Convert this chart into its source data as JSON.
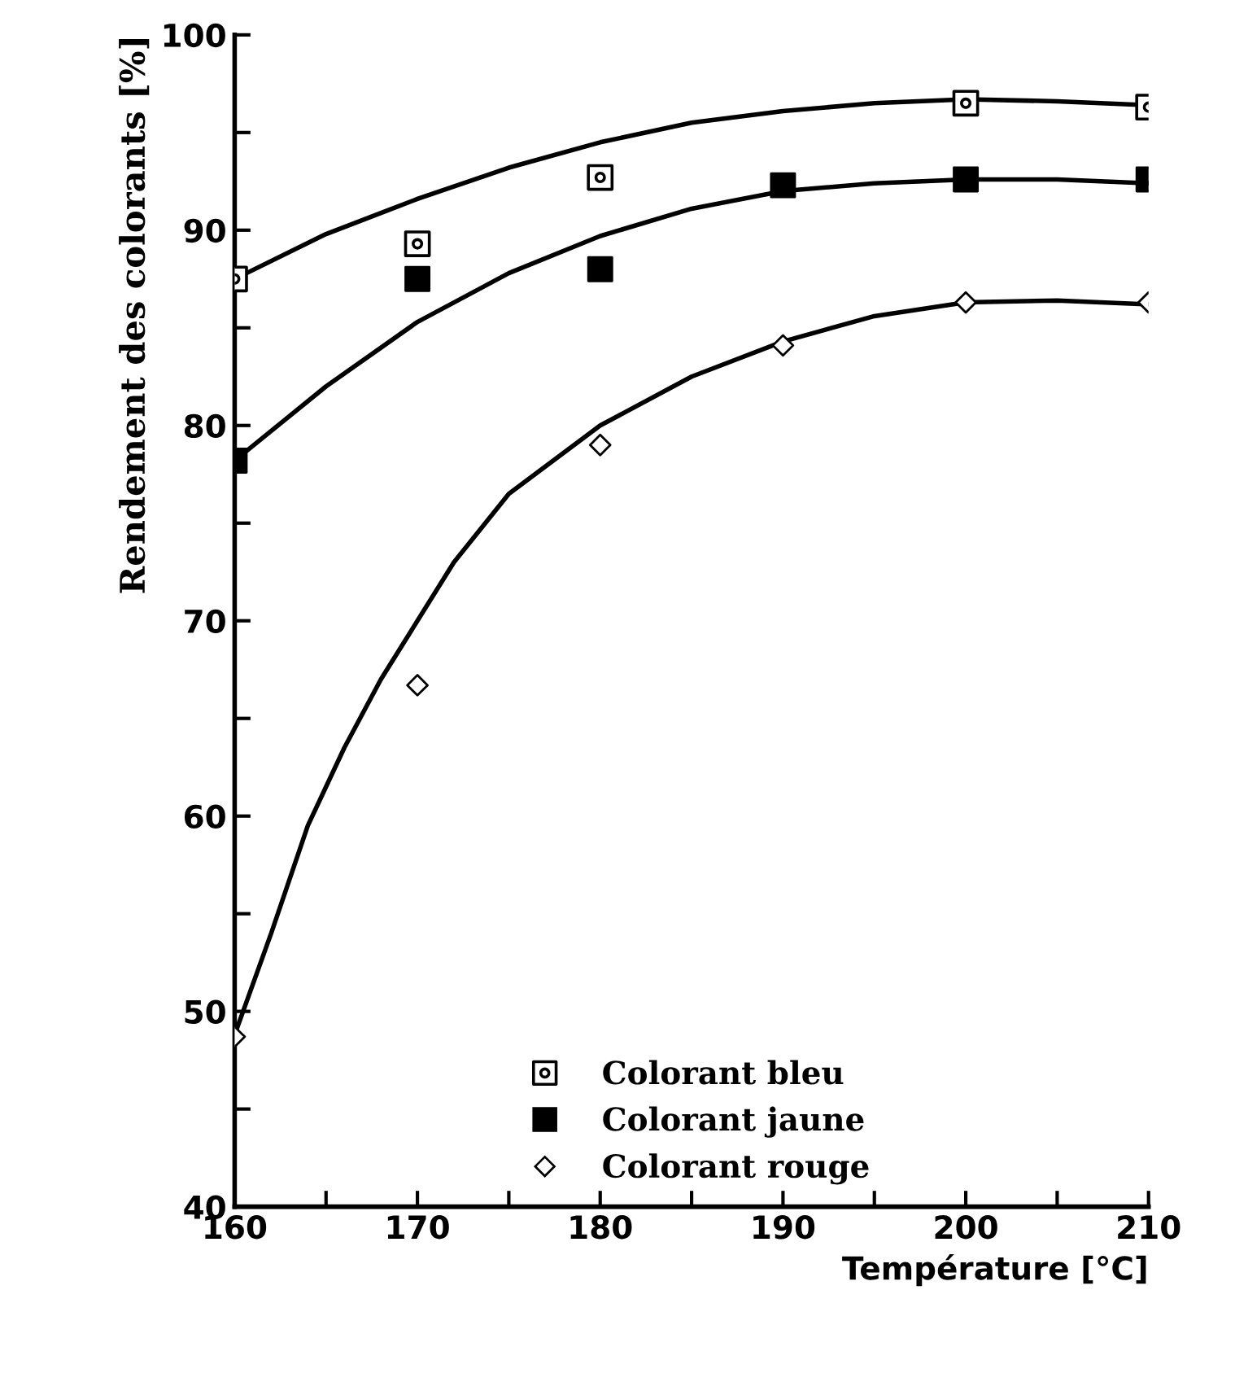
{
  "chart_data": {
    "type": "scatter",
    "xlabel": "Température [°C]",
    "ylabel": "Rendement des colorants [%]",
    "xlim": [
      160,
      210
    ],
    "ylim": [
      40,
      100
    ],
    "xticks": [
      160,
      {
        "value": 165,
        "label": null
      },
      170,
      {
        "value": 175,
        "label": null
      },
      180,
      {
        "value": 185,
        "label": null
      },
      190,
      {
        "value": 195,
        "label": null
      },
      200,
      {
        "value": 205,
        "label": null
      },
      210
    ],
    "yticks": [
      40,
      {
        "value": 45,
        "label": null
      },
      50,
      {
        "value": 55,
        "label": null
      },
      60,
      {
        "value": 65,
        "label": null
      },
      70,
      {
        "value": 75,
        "label": null
      },
      80,
      {
        "value": 85,
        "label": null
      },
      90,
      {
        "value": 95,
        "label": null
      },
      100
    ],
    "grid": false,
    "legend": "bottom",
    "series": [
      {
        "name": "Colorant bleu",
        "marker": "square",
        "color": "#000000",
        "x": [
          160,
          170,
          180,
          200,
          210
        ],
        "values": [
          87.5,
          89.3,
          92.7,
          96.5,
          96.3
        ]
      },
      {
        "name": "Colorant jaune",
        "marker": "square",
        "color": "#000000",
        "x": [
          160,
          170,
          180,
          190,
          200,
          210
        ],
        "values": [
          78.2,
          87.5,
          88.0,
          92.3,
          92.6,
          92.6
        ]
      },
      {
        "name": "Colorant rouge",
        "marker": "diamond",
        "color": "#000000",
        "x": [
          160,
          170,
          180,
          190,
          200,
          210
        ],
        "values": [
          48.7,
          66.7,
          79.0,
          84.1,
          86.3,
          86.3
        ]
      },
      {
        "type": "line",
        "color": "#000000",
        "line_style": "solid",
        "marker": "none",
        "x": [
          160,
          165,
          170,
          175,
          180,
          185,
          190,
          195,
          200,
          205,
          210
        ],
        "values": [
          87.5,
          89.8,
          91.6,
          93.2,
          94.5,
          95.5,
          96.1,
          96.5,
          96.7,
          96.6,
          96.4
        ]
      },
      {
        "type": "line",
        "color": "#000000",
        "line_style": "solid",
        "marker": "none",
        "x": [
          160,
          165,
          170,
          175,
          180,
          185,
          190,
          195,
          200,
          205,
          210
        ],
        "values": [
          78.2,
          82.0,
          85.3,
          87.8,
          89.7,
          91.1,
          92.0,
          92.4,
          92.6,
          92.6,
          92.4
        ]
      },
      {
        "type": "line",
        "color": "#000000",
        "line_style": "solid",
        "marker": "none",
        "x": [
          160,
          162,
          164,
          166,
          168,
          170,
          172,
          175,
          180,
          185,
          190,
          195,
          200,
          205,
          210
        ],
        "values": [
          48.8,
          54.0,
          59.5,
          63.5,
          67.0,
          70.0,
          73.0,
          76.5,
          80.0,
          82.5,
          84.3,
          85.6,
          86.3,
          86.4,
          86.2
        ]
      }
    ]
  }
}
